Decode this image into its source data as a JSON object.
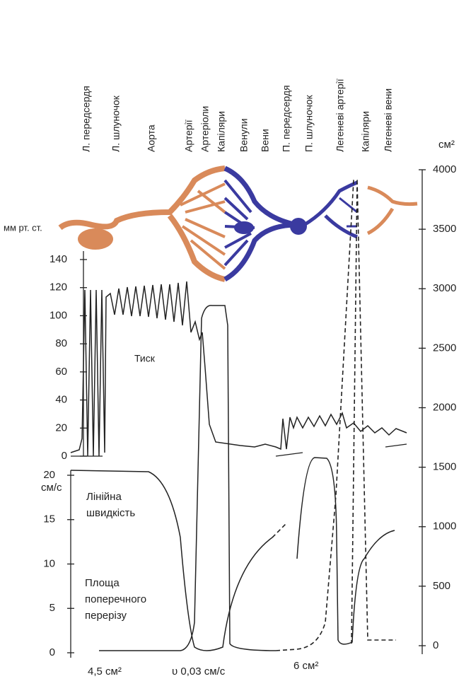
{
  "vessels": [
    "Л. передсердя",
    "Л. шлуночок",
    "Аорта",
    "Артерії",
    "Артеріоли",
    "Капіляри",
    "Венули",
    "Вени",
    "П. передсердя",
    "П. шлуночок",
    "Легеневі артерії",
    "Капіляри",
    "Легеневі вени"
  ],
  "pressure_axis": {
    "unit": "мм рт. ст.",
    "ticks": [
      "140",
      "120",
      "100",
      "80",
      "60",
      "40",
      "20",
      "0"
    ]
  },
  "velocity_axis": {
    "unit": "см/с",
    "ticks": [
      "20",
      "15",
      "10",
      "5",
      "0"
    ]
  },
  "area_axis": {
    "unit": "см²",
    "ticks": [
      "4000",
      "3500",
      "3000",
      "2500",
      "2000",
      "1500",
      "1000",
      "500",
      "0"
    ]
  },
  "annotations": {
    "pressure": "Тиск",
    "velocity": [
      "Лінійна",
      "швидкість"
    ],
    "area": [
      "Площа",
      "поперечного",
      "перерізу"
    ],
    "bottom": [
      "4,5 см²",
      "υ 0,03 см/с",
      "6 см²"
    ]
  }
}
